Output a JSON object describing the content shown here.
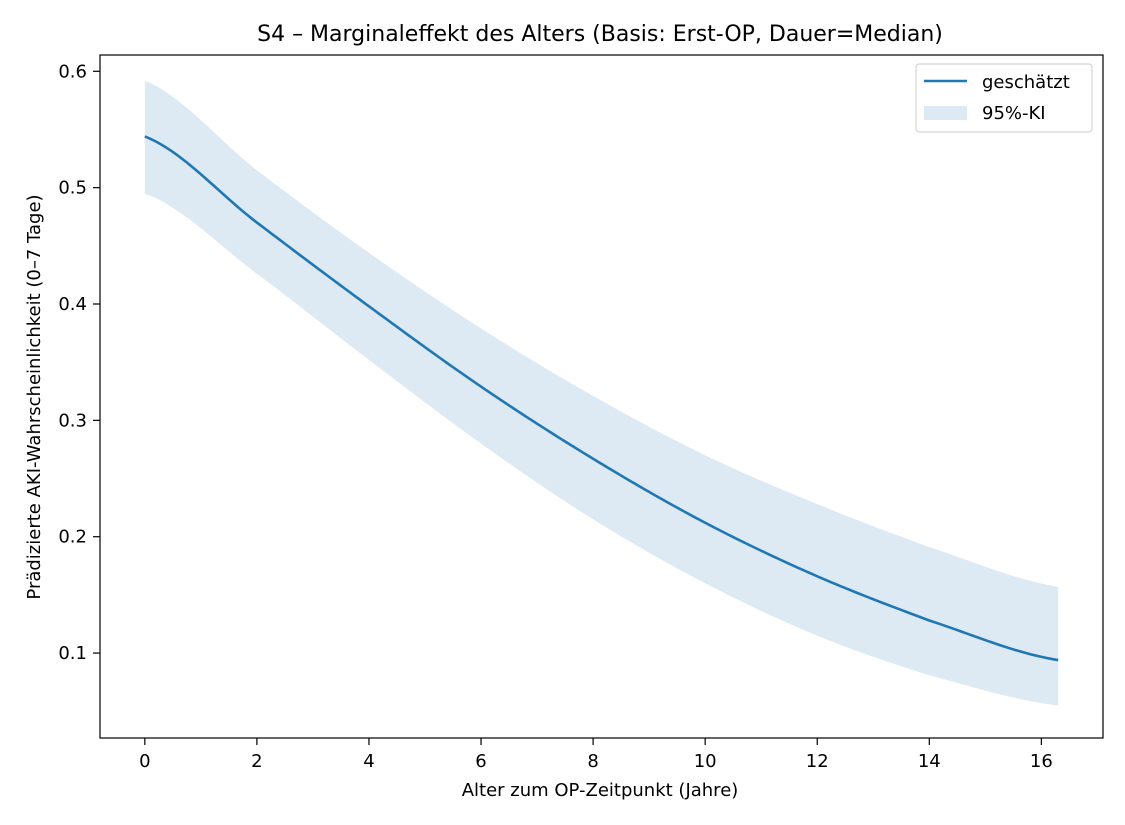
{
  "chart_data": {
    "type": "line",
    "title": "S4 – Marginaleffekt des Alters (Basis: Erst-OP, Dauer=Median)",
    "xlabel": "Alter zum OP-Zeitpunkt (Jahre)",
    "ylabel": "Prädizierte AKI-Wahrscheinlichkeit (0–7 Tage)",
    "xlim": [
      -0.8,
      17.1
    ],
    "ylim": [
      0.027,
      0.614
    ],
    "xticks": [
      0,
      2,
      4,
      6,
      8,
      10,
      12,
      14,
      16
    ],
    "yticks": [
      0.1,
      0.2,
      0.3,
      0.4,
      0.5,
      0.6
    ],
    "xtick_labels": [
      "0",
      "2",
      "4",
      "6",
      "8",
      "10",
      "12",
      "14",
      "16"
    ],
    "ytick_labels": [
      "0.1",
      "0.2",
      "0.3",
      "0.4",
      "0.5",
      "0.6"
    ],
    "grid": false,
    "legend_position": "top-right",
    "legend": [
      "geschätzt",
      "95%-KI"
    ],
    "colors": {
      "line": "#1f77b4",
      "band": "#dde9f3",
      "axis": "#000000",
      "legend_border": "#cccccc"
    },
    "x": [
      0,
      2,
      4,
      6,
      8,
      10,
      12,
      14,
      16.3
    ],
    "series": [
      {
        "name": "geschätzt",
        "values": [
          0.544,
          0.47,
          0.398,
          0.329,
          0.267,
          0.212,
          0.166,
          0.128,
          0.094
        ]
      }
    ],
    "ci_lower": [
      0.495,
      0.426,
      0.352,
      0.28,
      0.215,
      0.16,
      0.115,
      0.081,
      0.055
    ],
    "ci_upper": [
      0.592,
      0.515,
      0.444,
      0.379,
      0.321,
      0.27,
      0.228,
      0.191,
      0.157
    ]
  }
}
